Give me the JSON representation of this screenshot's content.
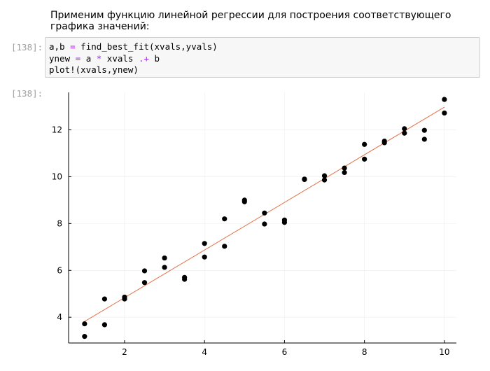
{
  "markdown_text": "Применим функцию линейной регрессии для построения соответствующего графика значений:",
  "input_prompt": "[138]:",
  "output_prompt": "[138]:",
  "code_lines": [
    [
      {
        "t": "a,b ",
        "c": ""
      },
      {
        "t": "=",
        "c": "op"
      },
      {
        "t": " find_best_fit(xvals,yvals)",
        "c": ""
      }
    ],
    [
      {
        "t": "ynew ",
        "c": ""
      },
      {
        "t": "=",
        "c": "op"
      },
      {
        "t": " a ",
        "c": ""
      },
      {
        "t": "*",
        "c": "op"
      },
      {
        "t": " xvals ",
        "c": ""
      },
      {
        "t": ".+",
        "c": "op"
      },
      {
        "t": " b",
        "c": ""
      }
    ],
    [
      {
        "t": "plot!(xvals,ynew)",
        "c": ""
      }
    ]
  ],
  "colors": {
    "points": "#000000",
    "fit_line": "#e26f46",
    "grid": "#ececec"
  },
  "chart_data": {
    "type": "scatter",
    "xlim": [
      0.6,
      10.3
    ],
    "ylim": [
      2.9,
      13.6
    ],
    "xticks": [
      2,
      4,
      6,
      8,
      10
    ],
    "yticks": [
      4,
      6,
      8,
      10,
      12
    ],
    "grid": true,
    "legend": "none",
    "series": [
      {
        "type": "scatter",
        "points": [
          [
            1.0,
            3.72
          ],
          [
            1.0,
            3.18
          ],
          [
            1.5,
            4.78
          ],
          [
            1.5,
            3.68
          ],
          [
            2.0,
            4.86
          ],
          [
            2.0,
            4.78
          ],
          [
            2.5,
            5.98
          ],
          [
            2.5,
            5.48
          ],
          [
            3.0,
            6.53
          ],
          [
            3.0,
            6.13
          ],
          [
            3.5,
            5.7
          ],
          [
            3.5,
            5.62
          ],
          [
            4.0,
            7.15
          ],
          [
            4.0,
            6.57
          ],
          [
            4.5,
            8.2
          ],
          [
            4.5,
            7.03
          ],
          [
            5.0,
            9.0
          ],
          [
            5.0,
            8.93
          ],
          [
            5.5,
            8.45
          ],
          [
            5.5,
            7.98
          ],
          [
            6.0,
            8.15
          ],
          [
            6.0,
            8.05
          ],
          [
            6.5,
            9.9
          ],
          [
            6.5,
            9.88
          ],
          [
            7.0,
            10.04
          ],
          [
            7.0,
            9.86
          ],
          [
            7.5,
            10.37
          ],
          [
            7.5,
            10.18
          ],
          [
            8.0,
            11.38
          ],
          [
            8.0,
            10.75
          ],
          [
            8.5,
            11.52
          ],
          [
            8.5,
            11.45
          ],
          [
            9.0,
            12.05
          ],
          [
            9.0,
            11.86
          ],
          [
            9.5,
            11.98
          ],
          [
            9.5,
            11.6
          ],
          [
            10.0,
            13.3
          ],
          [
            10.0,
            12.72
          ]
        ]
      },
      {
        "type": "line",
        "points": [
          [
            1.0,
            3.82
          ],
          [
            10.0,
            12.97
          ]
        ]
      }
    ]
  }
}
